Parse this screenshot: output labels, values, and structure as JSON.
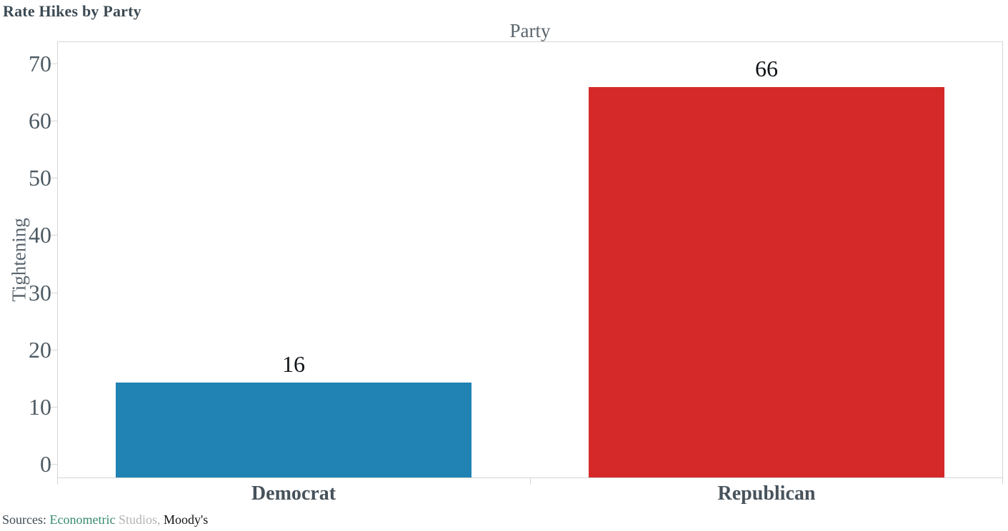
{
  "chart_data": {
    "type": "bar",
    "title": "Rate Hikes by Party",
    "xlabel": "Party",
    "ylabel": "Tightening",
    "categories": [
      "Democrat",
      "Republican"
    ],
    "values": [
      16,
      66
    ],
    "value_labels": [
      "16",
      "66"
    ],
    "bar_colors": [
      "#2182b4",
      "#d42928"
    ],
    "ylim": [
      0,
      70
    ],
    "yticks": [
      0,
      10,
      20,
      30,
      40,
      50,
      60,
      70
    ],
    "grid": false,
    "legend": "none",
    "plot_border_color": "#d6d6d6"
  },
  "footer": {
    "sources_prefix": "Sources: ",
    "sources": [
      {
        "text": "Econometric ",
        "color": "#368a6c"
      },
      {
        "text": "Studios, ",
        "color": "#b4b4b4"
      },
      {
        "text": "Moody's",
        "color": "#141414"
      }
    ]
  }
}
